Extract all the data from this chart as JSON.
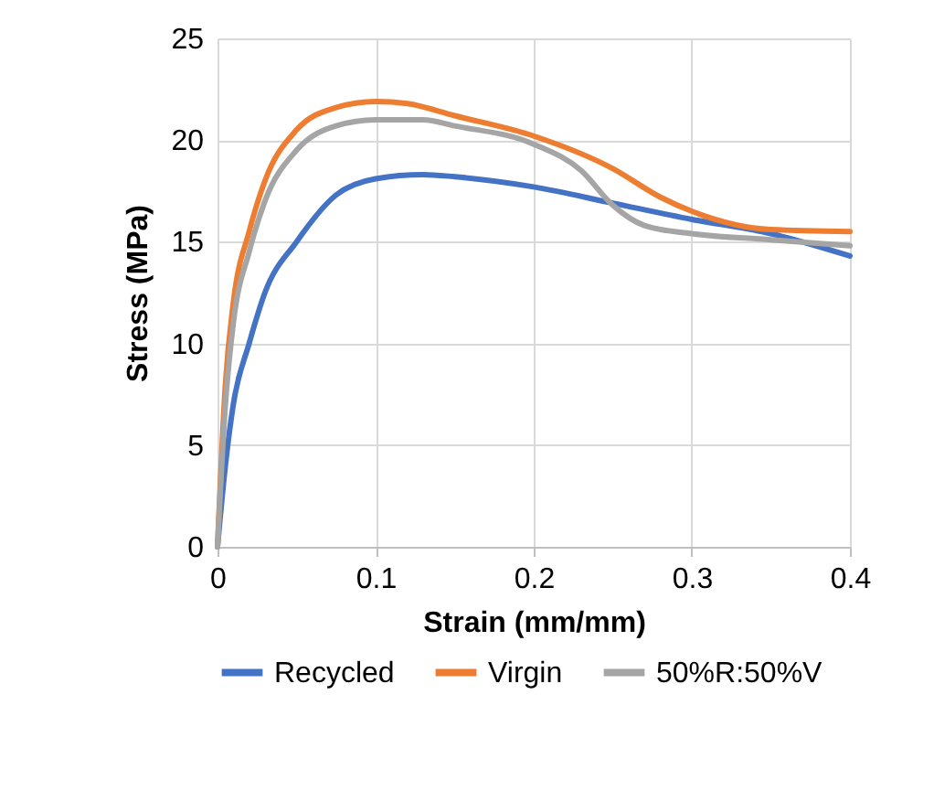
{
  "chart_data": {
    "type": "line",
    "xlabel": "Strain (mm/mm)",
    "ylabel": "Stress (MPa)",
    "xlim": [
      0,
      0.4
    ],
    "xticks": [
      {
        "value": 0,
        "label": "0"
      },
      0.1,
      0.2,
      0.3,
      0.4
    ],
    "ylim": [
      0,
      25
    ],
    "yticks": [
      0,
      5,
      10,
      15,
      20,
      25
    ],
    "grid": true,
    "legend": "bottom",
    "marker": "none",
    "line_style": "solid",
    "series": [
      {
        "name": "Recycled",
        "color": "#4472c4",
        "x": [
          0,
          0.005,
          0.01,
          0.02,
          0.03,
          0.05,
          0.075,
          0.1,
          0.13,
          0.15,
          0.2,
          0.25,
          0.3,
          0.35,
          0.4
        ],
        "values": [
          0,
          4,
          7,
          10,
          12.5,
          15,
          17.3,
          18.1,
          18.3,
          18.2,
          17.7,
          16.9,
          16.1,
          15.4,
          14.3
        ]
      },
      {
        "name": "Virgin",
        "color": "#ed7d31",
        "x": [
          0,
          0.005,
          0.01,
          0.02,
          0.03,
          0.05,
          0.075,
          0.1,
          0.12,
          0.15,
          0.2,
          0.25,
          0.28,
          0.3,
          0.35,
          0.4
        ],
        "values": [
          0,
          8,
          12,
          15.5,
          18,
          20.5,
          21.6,
          21.9,
          21.8,
          21.2,
          20.2,
          18.6,
          17.2,
          16.5,
          15.6,
          15.5
        ]
      },
      {
        "name": "50%R:50%V",
        "color": "#a5a5a5",
        "x": [
          0,
          0.005,
          0.01,
          0.02,
          0.03,
          0.05,
          0.075,
          0.1,
          0.13,
          0.15,
          0.2,
          0.23,
          0.25,
          0.27,
          0.3,
          0.35,
          0.4
        ],
        "values": [
          0,
          7,
          11,
          14.5,
          17,
          19.5,
          20.7,
          21,
          21,
          20.7,
          19.8,
          18.5,
          16.8,
          15.8,
          15.4,
          15.1,
          14.8
        ]
      }
    ]
  }
}
